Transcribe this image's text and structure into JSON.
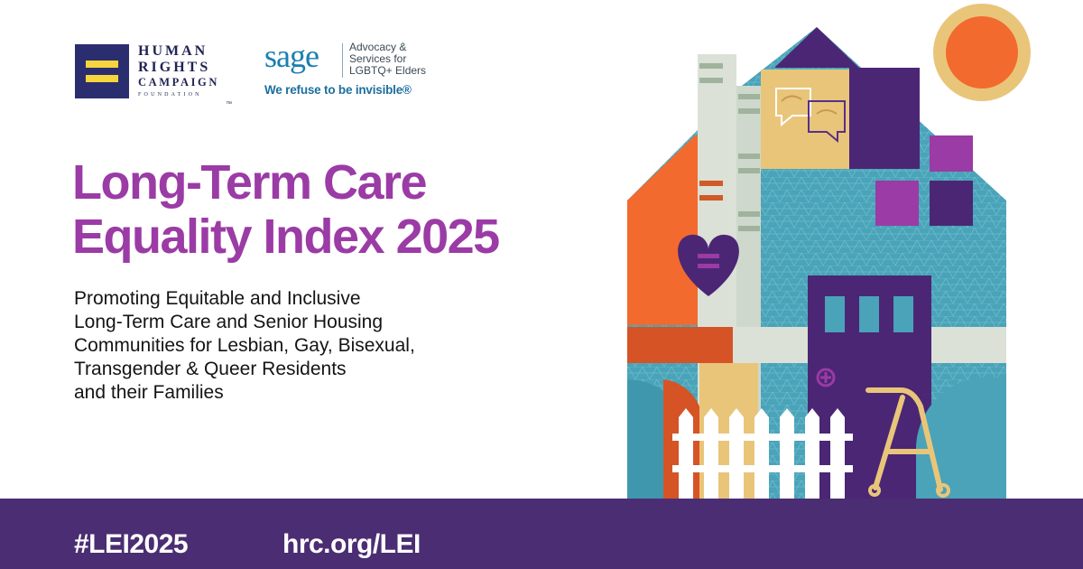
{
  "logos": {
    "hrc": {
      "line1": "HUMAN",
      "line2": "RIGHTS",
      "line3": "CAMPAIGN",
      "line4": "FOUNDATION",
      "trademark": "™"
    },
    "sage": {
      "wordmark": "sage",
      "description": "Advocacy &\nServices for\nLGBTQ+ Elders",
      "tagline": "We refuse to be invisible®"
    }
  },
  "title_lines": [
    "Long-Term Care",
    "Equality Index 2025"
  ],
  "subtitle_lines": [
    "Promoting Equitable and Inclusive",
    "Long-Term Care and Senior Housing",
    "Communities for Lesbian, Gay, Bisexual,",
    "Transgender & Queer Residents",
    "and their Families"
  ],
  "footer": {
    "hashtag": "#LEI2025",
    "url": "hrc.org/LEI"
  },
  "colors": {
    "title_purple": "#9b3ba5",
    "footer_purple": "#4b2d73",
    "hrc_navy": "#2b2e6e",
    "hrc_yellow": "#f7d53d",
    "sage_blue": "#1a7fb0",
    "house_teal": "#4aa3b8",
    "house_orange": "#f26a2e",
    "house_purple": "#4b2675",
    "sun_orange": "#f26a2e",
    "sun_ring": "#e9c57a"
  },
  "icons": [
    "equality-logo-icon",
    "heart-equality-icon",
    "speech-bubbles-hands-icon",
    "walker-icon",
    "sun-icon",
    "picket-fence-icon",
    "door-cross-icon"
  ]
}
